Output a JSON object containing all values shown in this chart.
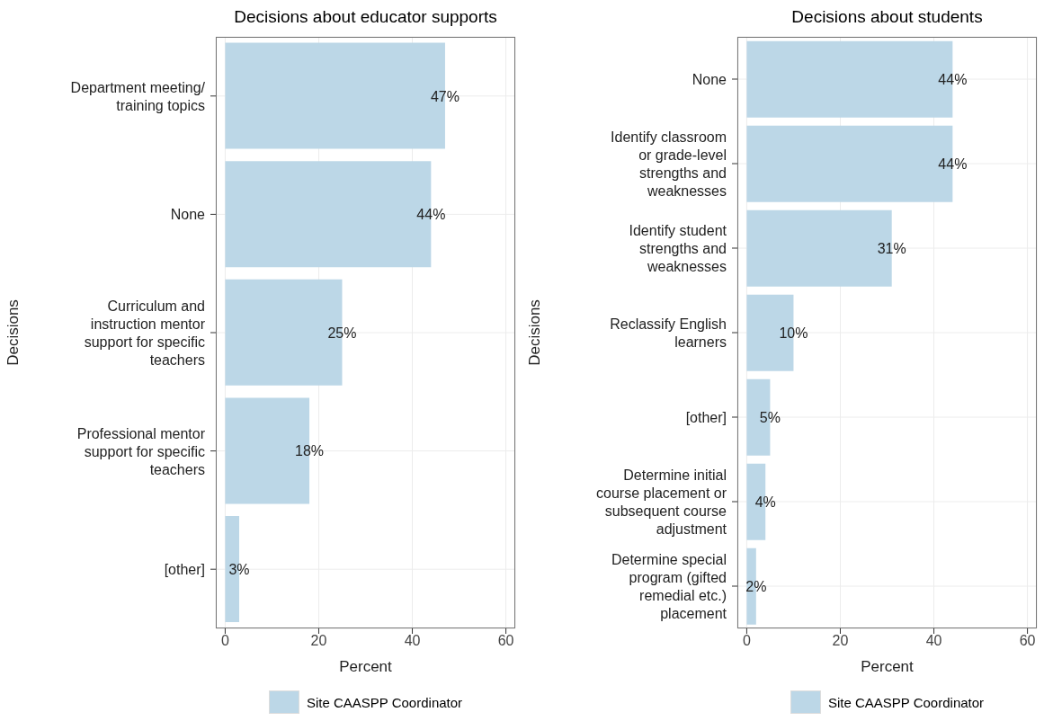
{
  "chart_data": [
    {
      "type": "bar",
      "orientation": "horizontal",
      "title": "Decisions about educator supports",
      "xlabel": "Percent",
      "ylabel": "Decisions",
      "categories": [
        "Department meeting/ training topics",
        "None",
        "Curriculum and instruction mentor support for specific teachers",
        "Professional mentor support for specific teachers",
        "[other]"
      ],
      "series": [
        {
          "name": "Site CAASPP Coordinator",
          "color": "#bcd7e7",
          "values": [
            47,
            44,
            25,
            18,
            3
          ],
          "value_labels": [
            "47%",
            "44%",
            "25%",
            "18%",
            "3%"
          ]
        }
      ],
      "xlim": [
        -2,
        62
      ],
      "xticks": [
        0,
        20,
        40,
        60
      ],
      "grid": true,
      "legend": "bottom"
    },
    {
      "type": "bar",
      "orientation": "horizontal",
      "title": "Decisions about students",
      "xlabel": "Percent",
      "ylabel": "Decisions",
      "categories": [
        "None",
        "Identify classroom or grade-level strengths and weaknesses",
        "Identify student strengths and weaknesses",
        "Reclassify English learners",
        "[other]",
        "Determine initial course placement or subsequent course adjustment",
        "Determine special program (gifted remedial etc.) placement"
      ],
      "series": [
        {
          "name": "Site CAASPP Coordinator",
          "color": "#bcd7e7",
          "values": [
            44,
            44,
            31,
            10,
            5,
            4,
            2
          ],
          "value_labels": [
            "44%",
            "44%",
            "31%",
            "10%",
            "5%",
            "4%",
            "2%"
          ]
        }
      ],
      "xlim": [
        -2,
        62
      ],
      "xticks": [
        0,
        20,
        40,
        60
      ],
      "grid": true,
      "legend": "bottom"
    }
  ]
}
